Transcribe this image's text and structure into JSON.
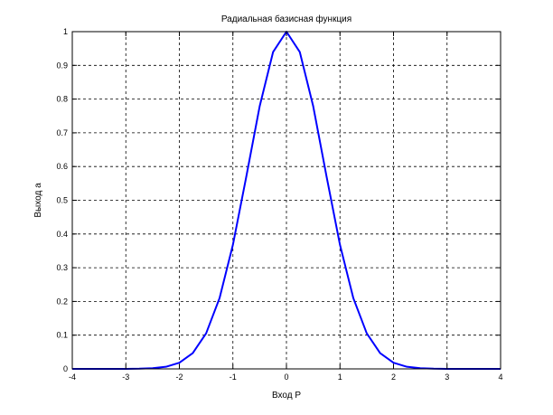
{
  "chart_data": {
    "type": "line",
    "title": "Радиальная базисная функция",
    "xlabel": "Вход P",
    "ylabel": "Выход a",
    "xlim": [
      -4,
      4
    ],
    "ylim": [
      0,
      1
    ],
    "xticks": [
      "-4",
      "-3",
      "-2",
      "-1",
      "0",
      "1",
      "2",
      "3",
      "4"
    ],
    "yticks": [
      "0",
      "0.1",
      "0.2",
      "0.3",
      "0.4",
      "0.5",
      "0.6",
      "0.7",
      "0.8",
      "0.9",
      "1"
    ],
    "grid": true,
    "series": [
      {
        "color": "#0000ff",
        "x": [
          -4,
          -3.75,
          -3.5,
          -3.25,
          -3,
          -2.75,
          -2.5,
          -2.25,
          -2,
          -1.75,
          -1.5,
          -1.25,
          -1,
          -0.75,
          -0.5,
          -0.25,
          0,
          0.25,
          0.5,
          0.75,
          1,
          1.25,
          1.5,
          1.75,
          2,
          2.25,
          2.5,
          2.75,
          3,
          3.25,
          3.5,
          3.75,
          4
        ],
        "y": [
          0,
          0,
          0,
          0,
          0.0001,
          0.0005,
          0.0019,
          0.0063,
          0.0183,
          0.0468,
          0.1054,
          0.2096,
          0.3679,
          0.5698,
          0.7788,
          0.9394,
          1,
          0.9394,
          0.7788,
          0.5698,
          0.3679,
          0.2096,
          0.1054,
          0.0468,
          0.0183,
          0.0063,
          0.0019,
          0.0005,
          0.0001,
          0,
          0,
          0,
          0
        ]
      }
    ]
  }
}
